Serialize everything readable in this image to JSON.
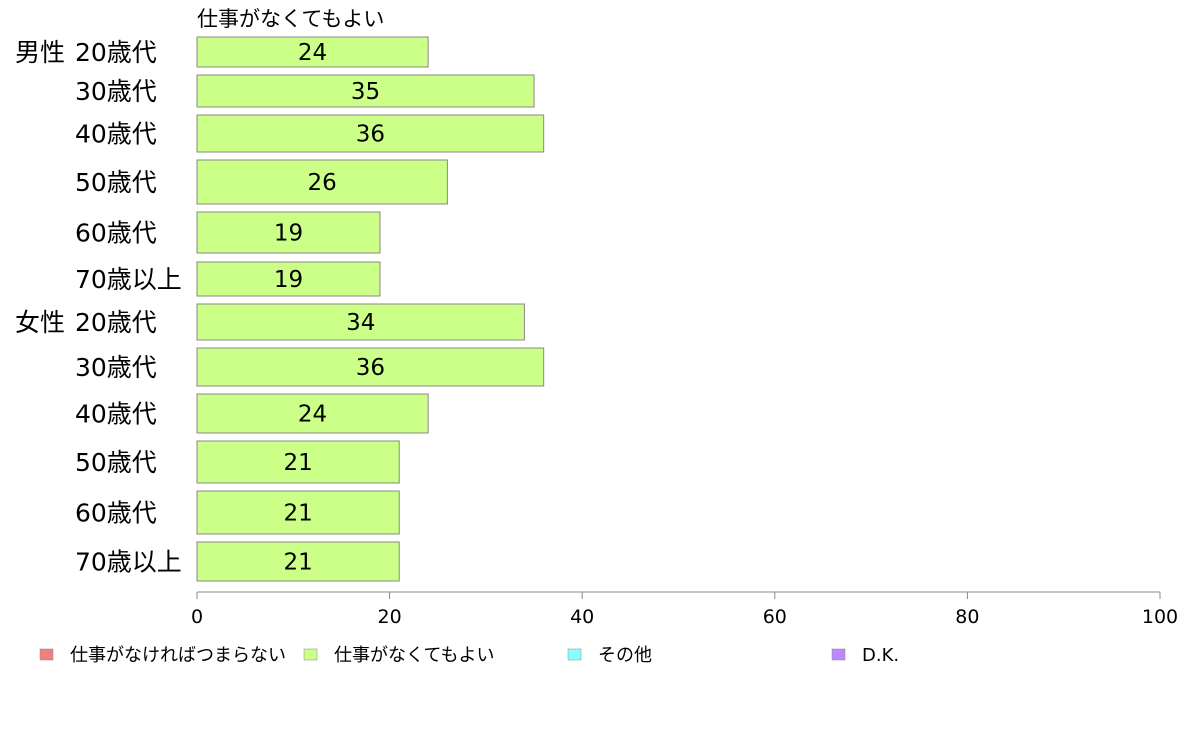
{
  "chart_data": {
    "type": "bar",
    "orientation": "horizontal",
    "series_title": "仕事がなくてもよい",
    "categories": [
      {
        "group": "男性",
        "label": "20歳代"
      },
      {
        "group": "",
        "label": "30歳代"
      },
      {
        "group": "",
        "label": "40歳代"
      },
      {
        "group": "",
        "label": "50歳代"
      },
      {
        "group": "",
        "label": "60歳代"
      },
      {
        "group": "",
        "label": "70歳以上"
      },
      {
        "group": "女性",
        "label": "20歳代"
      },
      {
        "group": "",
        "label": "30歳代"
      },
      {
        "group": "",
        "label": "40歳代"
      },
      {
        "group": "",
        "label": "50歳代"
      },
      {
        "group": "",
        "label": "60歳代"
      },
      {
        "group": "",
        "label": "70歳以上"
      }
    ],
    "series": [
      {
        "name": "仕事がなくてもよい",
        "color": "#ccff88",
        "values": [
          24,
          35,
          36,
          26,
          19,
          19,
          34,
          36,
          24,
          21,
          21,
          21
        ]
      }
    ],
    "xlim": [
      0,
      100
    ],
    "xticks": [
      0,
      20,
      40,
      60,
      80,
      100
    ],
    "grid": false,
    "legend_position": "bottom",
    "legend": [
      {
        "label": "仕事がなければつまらない",
        "color": "#f08080"
      },
      {
        "label": "仕事がなくてもよい",
        "color": "#ccff88"
      },
      {
        "label": "その他",
        "color": "#88ffff"
      },
      {
        "label": "D.K.",
        "color": "#bb88ff"
      }
    ]
  }
}
